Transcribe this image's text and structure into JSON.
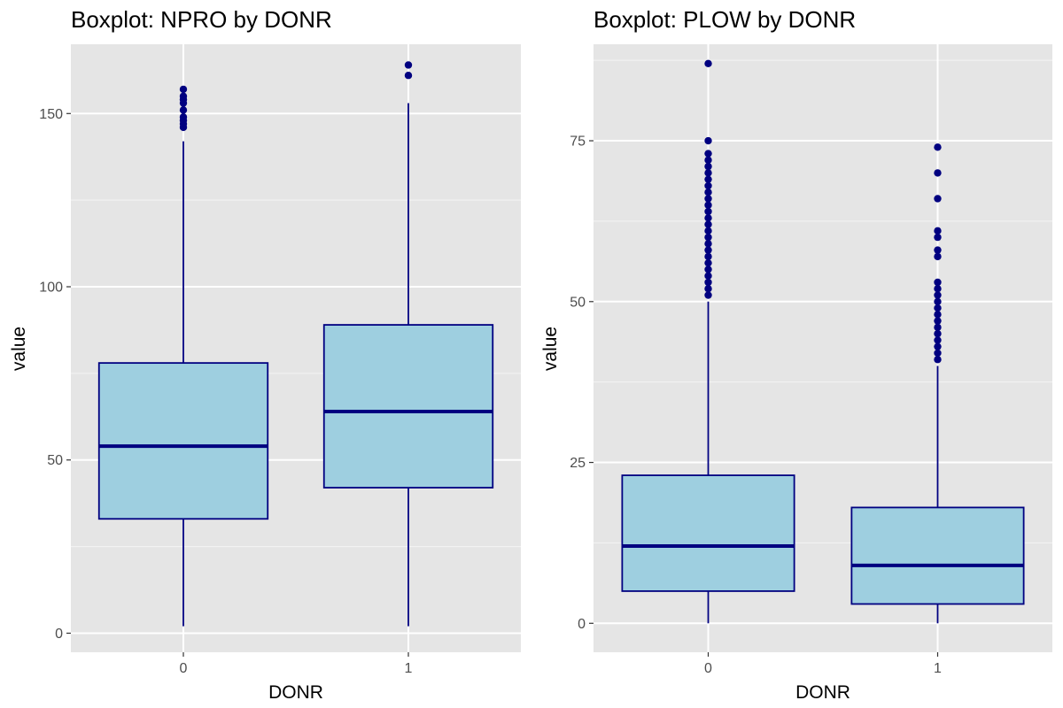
{
  "colors": {
    "panel_background": "#e5e5e5",
    "grid_major": "#ffffff",
    "box_fill": "#9ecfe0",
    "box_outline": "#000080",
    "outlier": "#000080",
    "tick_mark": "#333333"
  },
  "chart_data": [
    {
      "type": "boxplot",
      "title": "Boxplot: NPRO by DONR",
      "xlabel": "DONR",
      "ylabel": "value",
      "categories": [
        "0",
        "1"
      ],
      "ylim": [
        -5.5,
        170
      ],
      "yticks": [
        0,
        50,
        100,
        150
      ],
      "y_minor_ticks": [
        25,
        75,
        125
      ],
      "grid": true,
      "boxes": [
        {
          "category": "0",
          "lower_whisker": 2,
          "q1": 33,
          "median": 54,
          "q3": 78,
          "upper_whisker": 142,
          "outliers": [
            146,
            147,
            148,
            149,
            151,
            153,
            154,
            155,
            157
          ]
        },
        {
          "category": "1",
          "lower_whisker": 2,
          "q1": 42,
          "median": 64,
          "q3": 89,
          "upper_whisker": 153,
          "outliers": [
            161,
            164
          ]
        }
      ]
    },
    {
      "type": "boxplot",
      "title": "Boxplot: PLOW by DONR",
      "xlabel": "DONR",
      "ylabel": "value",
      "categories": [
        "0",
        "1"
      ],
      "ylim": [
        -4.5,
        90
      ],
      "yticks": [
        0,
        25,
        50,
        75
      ],
      "y_minor_ticks": [
        12.5,
        37.5,
        62.5,
        87.5
      ],
      "grid": true,
      "boxes": [
        {
          "category": "0",
          "lower_whisker": 0,
          "q1": 5,
          "median": 12,
          "q3": 23,
          "upper_whisker": 50,
          "outliers": [
            51,
            52,
            53,
            54,
            55,
            56,
            57,
            58,
            59,
            60,
            61,
            62,
            63,
            64,
            65,
            66,
            67,
            68,
            69,
            70,
            71,
            72,
            73,
            75,
            87
          ]
        },
        {
          "category": "1",
          "lower_whisker": 0,
          "q1": 3,
          "median": 9,
          "q3": 18,
          "upper_whisker": 40,
          "outliers": [
            41,
            42,
            43,
            44,
            45,
            46,
            47,
            48,
            49,
            50,
            51,
            52,
            53,
            57,
            58,
            60,
            61,
            66,
            70,
            74
          ]
        }
      ]
    }
  ]
}
